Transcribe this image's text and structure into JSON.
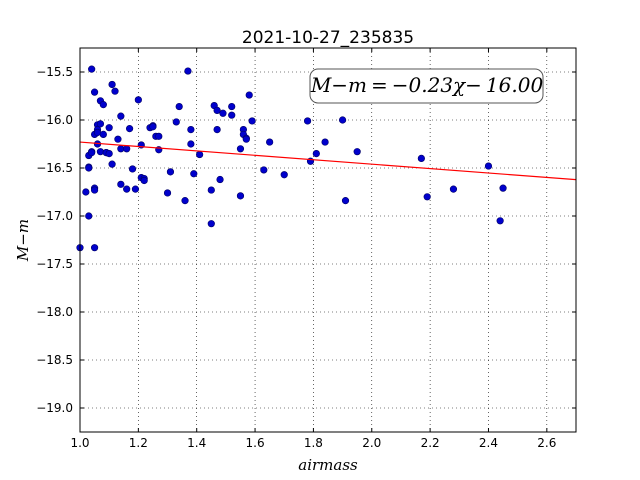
{
  "chart_data": {
    "type": "scatter",
    "title": "2021-10-27_235835",
    "xlabel": "airmass",
    "ylabel": "M−m",
    "xlim": [
      1.0,
      2.7
    ],
    "ylim": [
      -19.25,
      -15.25
    ],
    "y_inverted": true,
    "grid": true,
    "x_ticks": [
      1.0,
      1.2,
      1.4,
      1.6,
      1.8,
      2.0,
      2.2,
      2.4,
      2.6
    ],
    "x_tick_labels": [
      "1.0",
      "1.2",
      "1.4",
      "1.6",
      "1.8",
      "2.0",
      "2.2",
      "2.4",
      "2.6"
    ],
    "y_ticks": [
      -15.5,
      -16.0,
      -16.5,
      -17.0,
      -17.5,
      -18.0,
      -18.5,
      -19.0
    ],
    "y_tick_labels": [
      "−15.5",
      "−16.0",
      "−16.5",
      "−17.0",
      "−17.5",
      "−18.0",
      "−18.5",
      "−19.0"
    ],
    "annotation": "M−m = −0.23χ− 16.00",
    "fit_line": {
      "slope": -0.23,
      "intercept": -16.0
    },
    "colors": {
      "points": "#0000cc",
      "points_edge": "#000066",
      "fit": "#ff0000"
    },
    "series": [
      {
        "x": [
          1.0,
          1.02,
          1.03,
          1.03,
          1.03,
          1.03,
          1.04,
          1.04,
          1.04,
          1.05,
          1.05,
          1.05,
          1.05,
          1.05,
          1.06,
          1.06,
          1.06,
          1.06,
          1.07,
          1.07,
          1.07,
          1.08,
          1.08,
          1.09,
          1.09,
          1.1,
          1.1,
          1.11,
          1.11,
          1.12,
          1.13,
          1.14,
          1.14,
          1.14,
          1.16,
          1.16,
          1.17,
          1.18,
          1.19,
          1.2,
          1.21,
          1.21,
          1.22,
          1.22,
          1.24,
          1.25,
          1.25,
          1.26,
          1.27,
          1.27,
          1.3,
          1.31,
          1.33,
          1.34,
          1.36,
          1.37,
          1.38,
          1.38,
          1.39,
          1.41,
          1.45,
          1.45,
          1.46,
          1.47,
          1.47,
          1.48,
          1.49,
          1.52,
          1.52,
          1.55,
          1.55,
          1.56,
          1.56,
          1.57,
          1.57,
          1.58,
          1.59,
          1.63,
          1.65,
          1.7,
          1.78,
          1.79,
          1.81,
          1.84,
          1.9,
          1.91,
          1.95,
          2.17,
          2.19,
          2.28,
          2.4,
          2.44,
          2.45
        ],
        "y": [
          -17.33,
          -16.75,
          -16.37,
          -17.0,
          -16.49,
          -16.5,
          -15.47,
          -16.33,
          -16.34,
          -15.71,
          -16.15,
          -16.71,
          -16.73,
          -17.33,
          -16.05,
          -16.1,
          -16.13,
          -16.25,
          -15.8,
          -16.04,
          -16.33,
          -16.15,
          -15.84,
          -16.34,
          -16.34,
          -16.08,
          -16.35,
          -15.63,
          -16.46,
          -15.7,
          -16.2,
          -15.96,
          -16.3,
          -16.67,
          -16.3,
          -16.72,
          -16.09,
          -16.51,
          -16.72,
          -15.79,
          -16.26,
          -16.6,
          -16.61,
          -16.63,
          -16.08,
          -16.06,
          -16.07,
          -16.17,
          -16.31,
          -16.17,
          -16.76,
          -16.54,
          -16.02,
          -15.86,
          -16.84,
          -15.49,
          -16.1,
          -16.25,
          -16.56,
          -16.36,
          -17.08,
          -16.73,
          -15.85,
          -15.9,
          -16.1,
          -16.62,
          -15.93,
          -15.86,
          -15.95,
          -16.79,
          -16.3,
          -16.1,
          -16.15,
          -16.19,
          -16.2,
          -15.74,
          -16.01,
          -16.52,
          -16.23,
          -16.57,
          -16.01,
          -16.43,
          -16.35,
          -16.23,
          -16.0,
          -16.84,
          -16.33,
          -16.4,
          -16.8,
          -16.72,
          -16.48,
          -17.05,
          -16.71
        ]
      }
    ]
  }
}
